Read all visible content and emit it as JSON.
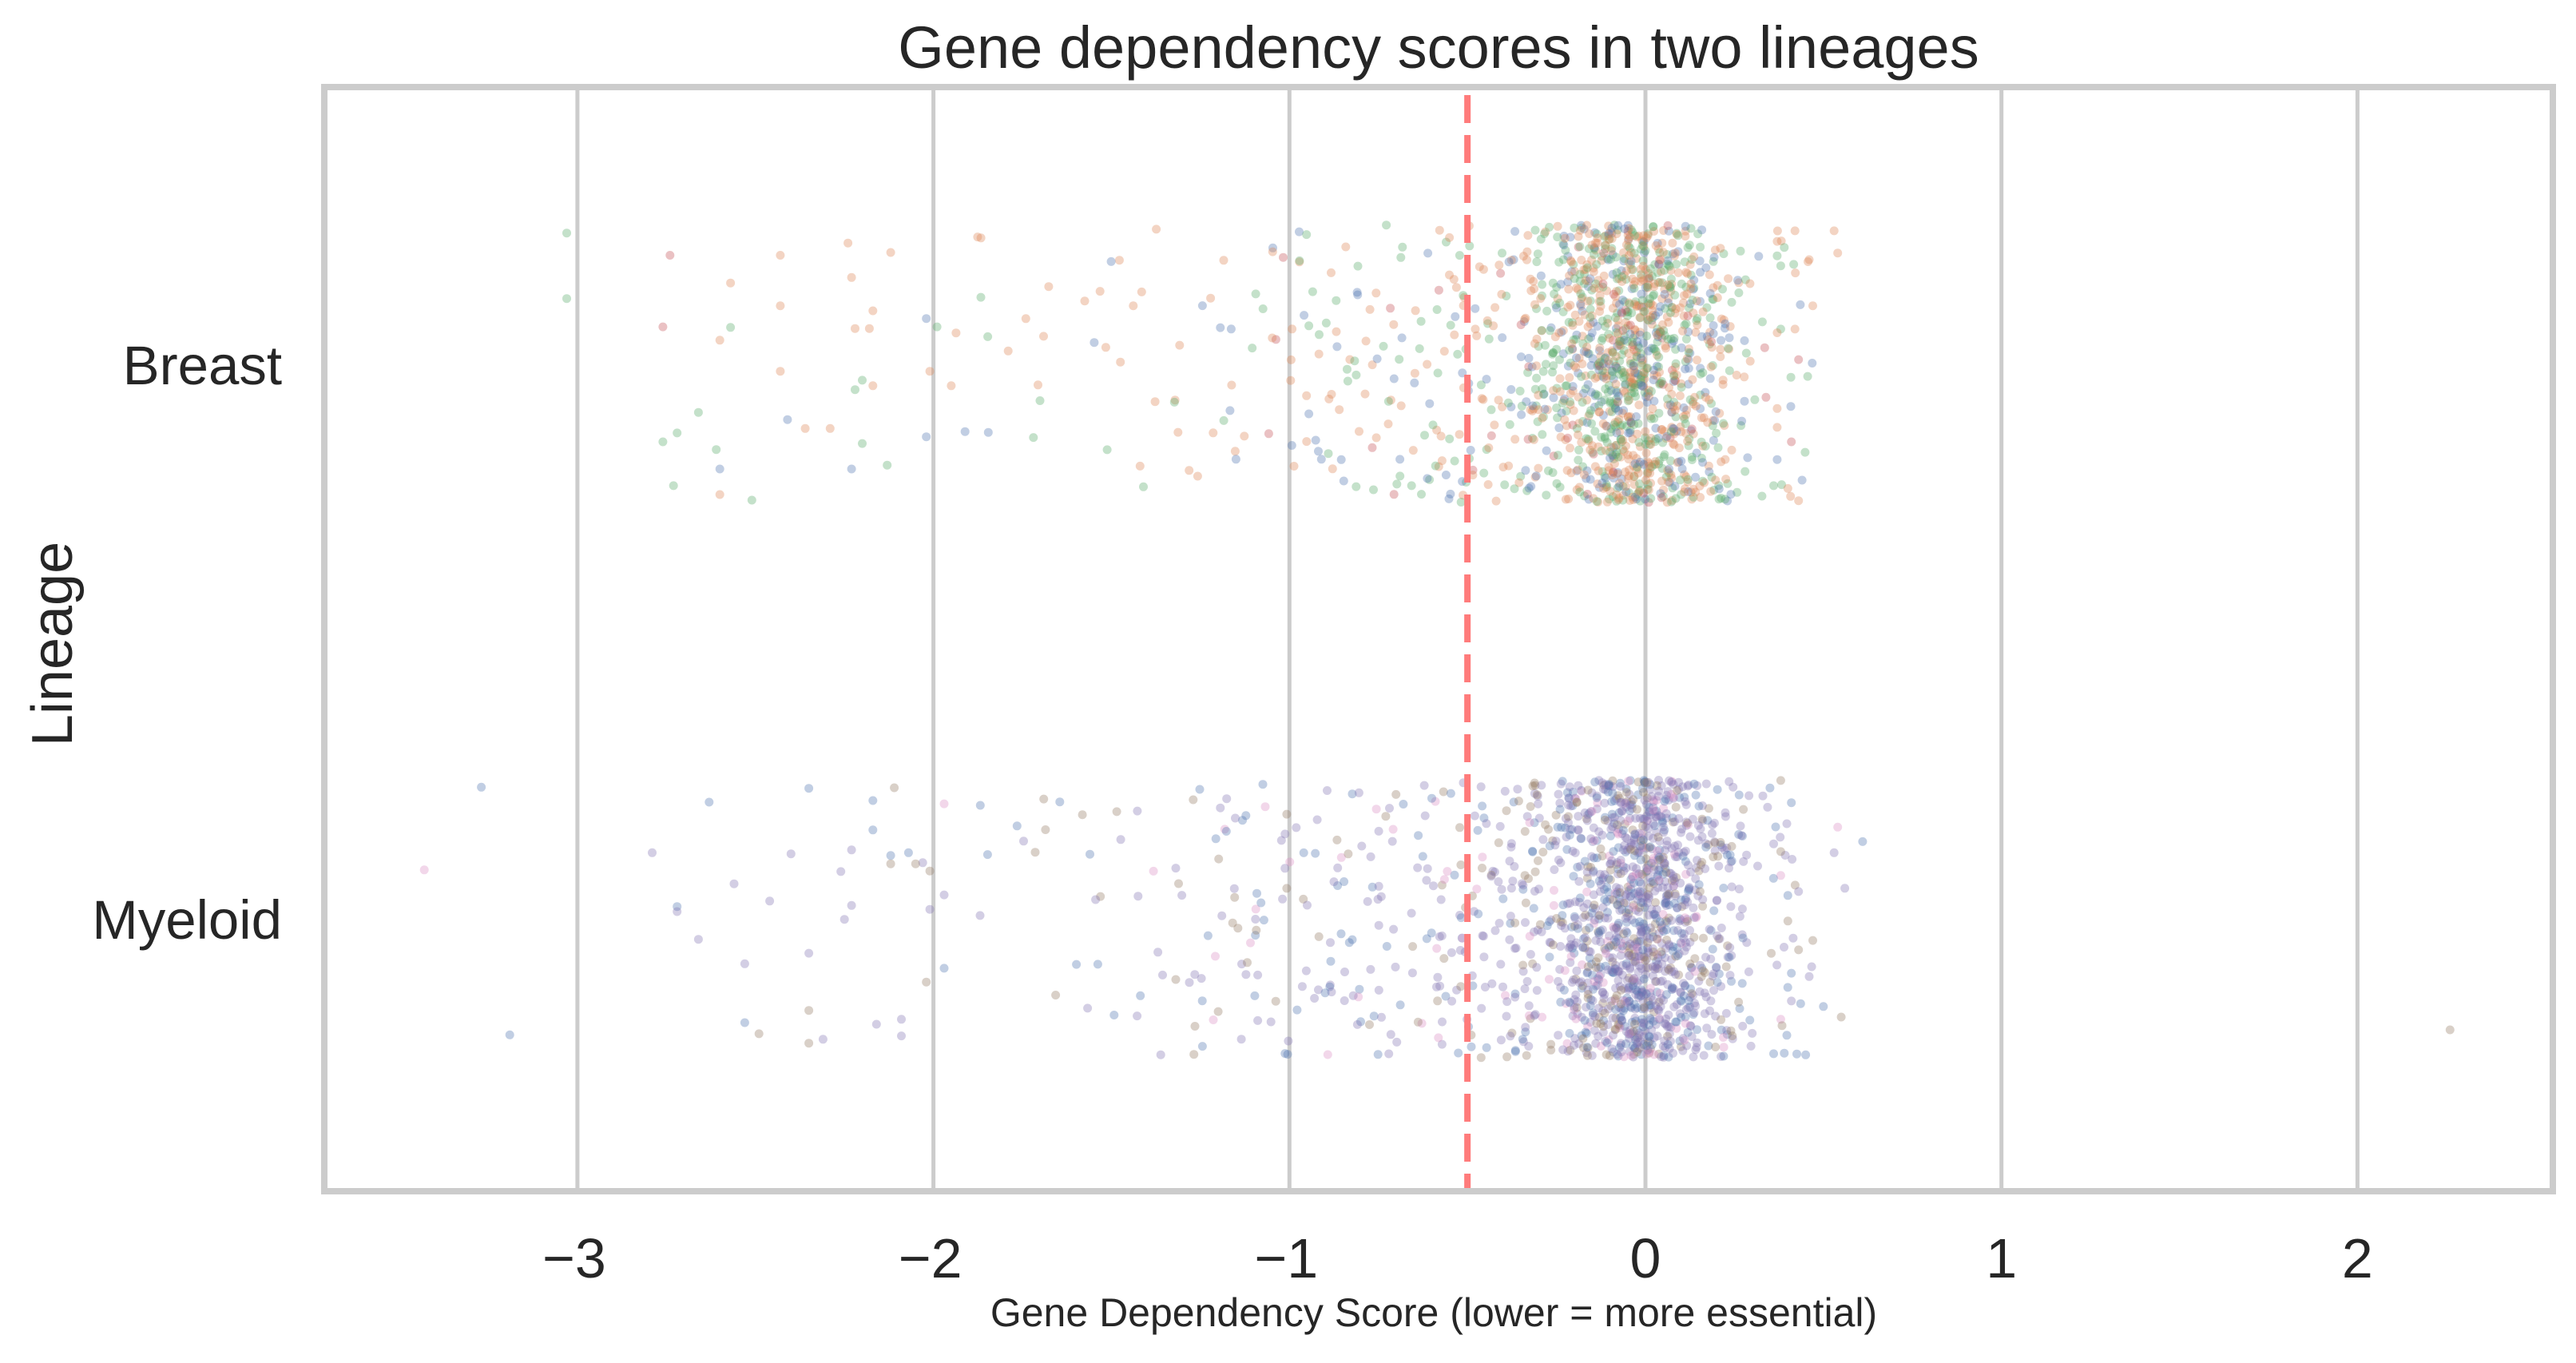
{
  "chart_data": {
    "type": "scatter",
    "subtype": "strip (jittered categorical scatter)",
    "title": "Gene dependency scores in two lineages",
    "xlabel": "Gene Dependency Score (lower = more essential)",
    "ylabel": "Lineage",
    "categories": [
      "Breast",
      "Myeloid"
    ],
    "orientation": "horizontal",
    "xlim": [
      -3.72,
      2.55
    ],
    "xticks": [
      -3,
      -2,
      -1,
      0,
      1,
      2
    ],
    "xtick_labels": [
      "−3",
      "−2",
      "−1",
      "0",
      "1",
      "2"
    ],
    "grid": {
      "x": true,
      "y": false,
      "color": "#cccccc"
    },
    "jitter": 0.25,
    "point_alpha": 0.35,
    "point_radius_px": 5.5,
    "threshold_line": {
      "x": -0.5,
      "style": "dashed",
      "color": "#ff7b7b",
      "orientation": "vertical"
    },
    "legend": null,
    "series": [
      {
        "name": "Breast",
        "palette": [
          "#4c72b0",
          "#dd8452",
          "#55a868",
          "#c44e52"
        ],
        "palette_weights": [
          0.2,
          0.4,
          0.36,
          0.04
        ],
        "distribution": {
          "core": {
            "n": 1150,
            "mean": -0.03,
            "sd": 0.14,
            "min": -0.34,
            "max": 0.3
          },
          "left_tail": {
            "n": 260,
            "min": -1.95,
            "max": -0.3,
            "decay": 0.55
          },
          "right_tail": {
            "n": 22,
            "min": 0.28,
            "max": 0.47
          }
        },
        "points": [
          {
            "x": -3.03,
            "j": -0.235,
            "c": 2
          },
          {
            "x": -3.03,
            "j": -0.117,
            "c": 2
          },
          {
            "x": -2.74,
            "j": -0.195,
            "c": 3
          },
          {
            "x": -2.43,
            "j": -0.195,
            "c": 1
          },
          {
            "x": -2.24,
            "j": -0.217,
            "c": 1
          },
          {
            "x": -2.12,
            "j": -0.2,
            "c": 1
          },
          {
            "x": -2.57,
            "j": -0.145,
            "c": 1
          },
          {
            "x": -2.23,
            "j": -0.155,
            "c": 1
          },
          {
            "x": -2.43,
            "j": -0.104,
            "c": 1
          },
          {
            "x": -2.17,
            "j": -0.095,
            "c": 1
          },
          {
            "x": -2.02,
            "j": -0.081,
            "c": 0
          },
          {
            "x": -1.99,
            "j": -0.066,
            "c": 2
          },
          {
            "x": -2.76,
            "j": -0.066,
            "c": 3
          },
          {
            "x": -2.57,
            "j": -0.065,
            "c": 2
          },
          {
            "x": -2.22,
            "j": -0.063,
            "c": 1
          },
          {
            "x": -2.18,
            "j": -0.063,
            "c": 1
          },
          {
            "x": -2.6,
            "j": -0.042,
            "c": 1
          },
          {
            "x": -2.43,
            "j": 0.014,
            "c": 1
          },
          {
            "x": -2.01,
            "j": 0.014,
            "c": 1
          },
          {
            "x": -2.2,
            "j": 0.03,
            "c": 2
          },
          {
            "x": -2.17,
            "j": 0.04,
            "c": 1
          },
          {
            "x": -1.95,
            "j": 0.04,
            "c": 1
          },
          {
            "x": -2.22,
            "j": 0.047,
            "c": 2
          },
          {
            "x": -2.66,
            "j": 0.088,
            "c": 2
          },
          {
            "x": -2.41,
            "j": 0.101,
            "c": 0
          },
          {
            "x": -2.36,
            "j": 0.117,
            "c": 1
          },
          {
            "x": -2.29,
            "j": 0.117,
            "c": 1
          },
          {
            "x": -2.72,
            "j": 0.125,
            "c": 2
          },
          {
            "x": -2.76,
            "j": 0.141,
            "c": 2
          },
          {
            "x": -2.02,
            "j": 0.132,
            "c": 0
          },
          {
            "x": -2.61,
            "j": 0.155,
            "c": 2
          },
          {
            "x": -2.2,
            "j": 0.144,
            "c": 2
          },
          {
            "x": -2.6,
            "j": 0.19,
            "c": 0
          },
          {
            "x": -2.23,
            "j": 0.19,
            "c": 0
          },
          {
            "x": -2.13,
            "j": 0.183,
            "c": 2
          },
          {
            "x": -2.73,
            "j": 0.22,
            "c": 2
          },
          {
            "x": -2.6,
            "j": 0.236,
            "c": 1
          },
          {
            "x": -2.51,
            "j": 0.246,
            "c": 2
          },
          {
            "x": 0.42,
            "j": -0.239,
            "c": 1
          },
          {
            "x": 0.53,
            "j": -0.239,
            "c": 1
          },
          {
            "x": 0.54,
            "j": -0.199,
            "c": 1
          },
          {
            "x": 0.46,
            "j": -0.187,
            "c": 1
          },
          {
            "x": 0.37,
            "j": -0.22,
            "c": 1
          },
          {
            "x": 0.39,
            "j": -0.209,
            "c": 2
          },
          {
            "x": 0.37,
            "j": -0.194,
            "c": 2
          },
          {
            "x": 0.38,
            "j": -0.176,
            "c": 2
          },
          {
            "x": 0.47,
            "j": -0.104,
            "c": 1
          },
          {
            "x": 0.42,
            "j": -0.062,
            "c": 1
          },
          {
            "x": 0.38,
            "j": -0.062,
            "c": 2
          },
          {
            "x": 0.43,
            "j": -0.007,
            "c": 3
          },
          {
            "x": 0.37,
            "j": 0.081,
            "c": 1
          },
          {
            "x": 0.37,
            "j": 0.115,
            "c": 1
          },
          {
            "x": 0.41,
            "j": 0.141,
            "c": 3
          },
          {
            "x": 0.37,
            "j": 0.173,
            "c": 0
          },
          {
            "x": 0.44,
            "j": 0.21,
            "c": 0
          },
          {
            "x": 0.4,
            "j": 0.225,
            "c": 1
          },
          {
            "x": 0.36,
            "j": 0.22,
            "c": 2
          },
          {
            "x": 0.43,
            "j": 0.247,
            "c": 1
          }
        ]
      },
      {
        "name": "Myeloid",
        "palette": [
          "#8172b3",
          "#4c72b0",
          "#937860",
          "#da8bc3"
        ],
        "palette_weights": [
          0.5,
          0.24,
          0.18,
          0.08
        ],
        "distribution": {
          "core": {
            "n": 1250,
            "mean": -0.02,
            "sd": 0.14,
            "min": -0.34,
            "max": 0.3
          },
          "left_tail": {
            "n": 300,
            "min": -1.95,
            "max": -0.3,
            "decay": 0.55
          },
          "right_tail": {
            "n": 24,
            "min": 0.28,
            "max": 0.47
          }
        },
        "points": [
          {
            "x": -3.27,
            "j": -0.237,
            "c": 1
          },
          {
            "x": -3.43,
            "j": -0.088,
            "c": 3
          },
          {
            "x": -3.19,
            "j": 0.209,
            "c": 1
          },
          {
            "x": -2.63,
            "j": -0.21,
            "c": 1
          },
          {
            "x": -2.35,
            "j": -0.235,
            "c": 1
          },
          {
            "x": -2.11,
            "j": -0.236,
            "c": 2
          },
          {
            "x": -2.17,
            "j": -0.213,
            "c": 1
          },
          {
            "x": -1.97,
            "j": -0.207,
            "c": 3
          },
          {
            "x": -2.17,
            "j": -0.16,
            "c": 1
          },
          {
            "x": -2.79,
            "j": -0.119,
            "c": 0
          },
          {
            "x": -2.4,
            "j": -0.117,
            "c": 0
          },
          {
            "x": -2.23,
            "j": -0.124,
            "c": 0
          },
          {
            "x": -2.12,
            "j": -0.114,
            "c": 1
          },
          {
            "x": -2.07,
            "j": -0.119,
            "c": 1
          },
          {
            "x": -2.12,
            "j": -0.099,
            "c": 2
          },
          {
            "x": -2.05,
            "j": -0.099,
            "c": 2
          },
          {
            "x": -2.03,
            "j": -0.101,
            "c": 0
          },
          {
            "x": -2.01,
            "j": -0.086,
            "c": 2
          },
          {
            "x": -2.26,
            "j": -0.085,
            "c": 0
          },
          {
            "x": -2.56,
            "j": -0.063,
            "c": 0
          },
          {
            "x": -1.97,
            "j": -0.043,
            "c": 0
          },
          {
            "x": -2.46,
            "j": -0.032,
            "c": 0
          },
          {
            "x": -2.72,
            "j": -0.022,
            "c": 1
          },
          {
            "x": -2.72,
            "j": -0.013,
            "c": 0
          },
          {
            "x": -2.23,
            "j": -0.024,
            "c": 0
          },
          {
            "x": -2.01,
            "j": -0.017,
            "c": 0
          },
          {
            "x": -2.25,
            "j": 0.001,
            "c": 0
          },
          {
            "x": -2.66,
            "j": 0.037,
            "c": 0
          },
          {
            "x": -2.35,
            "j": 0.062,
            "c": 0
          },
          {
            "x": -2.53,
            "j": 0.081,
            "c": 0
          },
          {
            "x": -1.97,
            "j": 0.089,
            "c": 1
          },
          {
            "x": -2.02,
            "j": 0.114,
            "c": 2
          },
          {
            "x": -2.35,
            "j": 0.165,
            "c": 2
          },
          {
            "x": -2.53,
            "j": 0.187,
            "c": 1
          },
          {
            "x": -2.49,
            "j": 0.207,
            "c": 2
          },
          {
            "x": -2.35,
            "j": 0.224,
            "c": 2
          },
          {
            "x": -2.31,
            "j": 0.217,
            "c": 0
          },
          {
            "x": -2.16,
            "j": 0.19,
            "c": 0
          },
          {
            "x": -2.09,
            "j": 0.181,
            "c": 0
          },
          {
            "x": -2.09,
            "j": 0.211,
            "c": 0
          },
          {
            "x": 0.38,
            "j": -0.249,
            "c": 2
          },
          {
            "x": 0.41,
            "j": -0.209,
            "c": 1
          },
          {
            "x": 0.54,
            "j": -0.165,
            "c": 3
          },
          {
            "x": 0.61,
            "j": -0.139,
            "c": 1
          },
          {
            "x": 0.53,
            "j": -0.119,
            "c": 0
          },
          {
            "x": 0.56,
            "j": -0.055,
            "c": 0
          },
          {
            "x": 0.36,
            "j": -0.135,
            "c": 0
          },
          {
            "x": 0.38,
            "j": -0.121,
            "c": 2
          },
          {
            "x": 0.38,
            "j": -0.078,
            "c": 3
          },
          {
            "x": 0.43,
            "j": -0.049,
            "c": 0
          },
          {
            "x": 0.4,
            "j": -0.042,
            "c": 1
          },
          {
            "x": 0.4,
            "j": 0.004,
            "c": 2
          },
          {
            "x": 0.47,
            "j": 0.039,
            "c": 2
          },
          {
            "x": 0.43,
            "j": 0.056,
            "c": 2
          },
          {
            "x": 0.41,
            "j": 0.098,
            "c": 1
          },
          {
            "x": 0.46,
            "j": 0.104,
            "c": 0
          },
          {
            "x": 0.41,
            "j": 0.148,
            "c": 0
          },
          {
            "x": 0.5,
            "j": 0.158,
            "c": 1
          },
          {
            "x": 0.55,
            "j": 0.177,
            "c": 2
          },
          {
            "x": 0.38,
            "j": 0.181,
            "c": 3
          },
          {
            "x": 0.36,
            "j": 0.243,
            "c": 1
          },
          {
            "x": 0.39,
            "j": 0.242,
            "c": 1
          },
          {
            "x": 0.45,
            "j": 0.245,
            "c": 1
          },
          {
            "x": 2.26,
            "j": 0.2,
            "c": 2
          }
        ]
      }
    ]
  }
}
